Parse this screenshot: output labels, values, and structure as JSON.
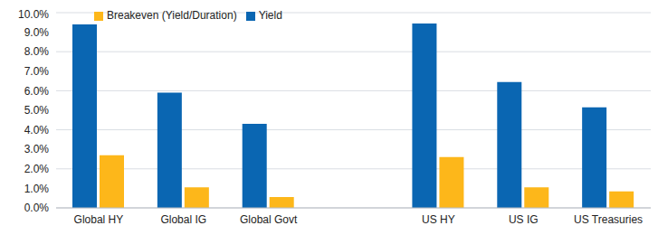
{
  "chart_data": {
    "type": "bar",
    "categories": [
      "Global HY",
      "Global IG",
      "Global Govt",
      null,
      "US HY",
      "US IG",
      "US Treasuries"
    ],
    "series": [
      {
        "name": "Yield",
        "color": "#0a66b2",
        "values": [
          9.4,
          5.9,
          4.3,
          null,
          9.45,
          6.45,
          5.15
        ]
      },
      {
        "name": "Breakeven (Yield/Duration)",
        "color": "#fdb71a",
        "values": [
          2.7,
          1.05,
          0.55,
          null,
          2.6,
          1.05,
          0.85
        ]
      }
    ],
    "ylim": [
      0,
      10
    ],
    "yticks": [
      {
        "value": 0,
        "label": "0.0%"
      },
      {
        "value": 1,
        "label": "1.0%"
      },
      {
        "value": 2,
        "label": "2.0%"
      },
      {
        "value": 3,
        "label": "3.0%"
      },
      {
        "value": 4,
        "label": "4.0%"
      },
      {
        "value": 5,
        "label": "5.0%"
      },
      {
        "value": 6,
        "label": "6.0%"
      },
      {
        "value": 7,
        "label": "7.0%"
      },
      {
        "value": 8,
        "label": "8.0%"
      },
      {
        "value": 9,
        "label": "9.0%"
      },
      {
        "value": 10,
        "label": "10.0%"
      }
    ],
    "grid": true,
    "legend": "upper left"
  }
}
